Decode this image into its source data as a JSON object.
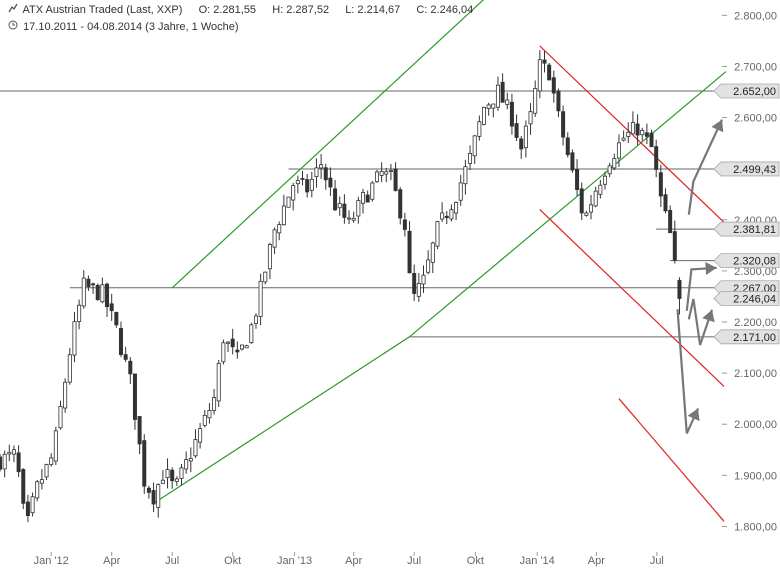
{
  "header": {
    "instrument": "ATX Austrian Traded (Last, XXP)",
    "open": "O: 2.281,55",
    "high": "H: 2.287,52",
    "low": "L: 2.214,67",
    "close": "C: 2.246,04",
    "period": "17.10.2011 - 04.08.2014 (3 Jahre, 1 Woche)",
    "chart_icon": "candlestick-icon",
    "clock_icon": "clock-icon"
  },
  "chart_data": {
    "type": "candlestick",
    "title": "ATX Austrian Traded (Last, XXP)",
    "y_axis": {
      "ylim": [
        1750,
        2830
      ],
      "ticks": [
        "1.800,00",
        "1.900,00",
        "2.000,00",
        "2.100,00",
        "2.200,00",
        "2.300,00",
        "2.400,00",
        "2.500,00",
        "2.600,00",
        "2.700,00",
        "2.800,00"
      ],
      "tick_values": [
        1800,
        1900,
        2000,
        2100,
        2200,
        2300,
        2400,
        2500,
        2600,
        2700,
        2800
      ],
      "position": "right"
    },
    "x_axis": {
      "labels": [
        "Jan '12",
        "Apr",
        "Jul",
        "Okt",
        "Jan '13",
        "Apr",
        "Jul",
        "Okt",
        "Jan '14",
        "Apr",
        "Jul"
      ],
      "label_dates": [
        "2012-01-02",
        "2012-04-02",
        "2012-07-02",
        "2012-10-01",
        "2013-01-02",
        "2013-04-01",
        "2013-07-01",
        "2013-10-01",
        "2014-01-02",
        "2014-04-01",
        "2014-07-01"
      ],
      "range": [
        "2011-10-17",
        "2014-10-10"
      ]
    },
    "grid": false,
    "colors": {
      "candle": "#333333",
      "support_level": "#666666",
      "uptrend_channel": "#2a9a2a",
      "downtrend_channel": "#e02020",
      "scenario_arrows": "#777777",
      "label_box": "#e2e2e2"
    },
    "series": [
      {
        "type": "ohlc",
        "anchors": [
          [
            "2011-10-17",
            1930
          ],
          [
            "2011-11-10",
            1940
          ],
          [
            "2011-11-25",
            1790
          ],
          [
            "2011-12-10",
            1870
          ],
          [
            "2012-01-05",
            1940
          ],
          [
            "2012-01-31",
            2150
          ],
          [
            "2012-02-20",
            2270
          ],
          [
            "2012-03-19",
            2255
          ],
          [
            "2012-04-09",
            2185
          ],
          [
            "2012-05-01",
            2080
          ],
          [
            "2012-05-21",
            1890
          ],
          [
            "2012-06-04",
            1860
          ],
          [
            "2012-06-20",
            1910
          ],
          [
            "2012-07-06",
            1870
          ],
          [
            "2012-08-01",
            1950
          ],
          [
            "2012-09-03",
            2050
          ],
          [
            "2012-09-17",
            2170
          ],
          [
            "2012-10-08",
            2125
          ],
          [
            "2012-11-01",
            2200
          ],
          [
            "2012-12-03",
            2380
          ],
          [
            "2012-12-31",
            2470
          ],
          [
            "2013-01-21",
            2460
          ],
          [
            "2013-02-11",
            2510
          ],
          [
            "2013-03-04",
            2430
          ],
          [
            "2013-03-25",
            2390
          ],
          [
            "2013-04-15",
            2440
          ],
          [
            "2013-05-13",
            2490
          ],
          [
            "2013-05-27",
            2480
          ],
          [
            "2013-06-17",
            2390
          ],
          [
            "2013-06-27",
            2240
          ],
          [
            "2013-07-15",
            2280
          ],
          [
            "2013-08-05",
            2380
          ],
          [
            "2013-09-02",
            2450
          ],
          [
            "2013-09-23",
            2520
          ],
          [
            "2013-10-14",
            2620
          ],
          [
            "2013-11-04",
            2650
          ],
          [
            "2013-11-25",
            2600
          ],
          [
            "2013-12-09",
            2540
          ],
          [
            "2013-12-23",
            2600
          ],
          [
            "2014-01-06",
            2700
          ],
          [
            "2014-01-20",
            2690
          ],
          [
            "2014-02-03",
            2600
          ],
          [
            "2014-02-24",
            2490
          ],
          [
            "2014-03-14",
            2400
          ],
          [
            "2014-03-31",
            2460
          ],
          [
            "2014-04-21",
            2520
          ],
          [
            "2014-05-12",
            2560
          ],
          [
            "2014-06-02",
            2580
          ],
          [
            "2014-06-23",
            2540
          ],
          [
            "2014-07-07",
            2440
          ],
          [
            "2014-07-21",
            2370
          ],
          [
            "2014-08-04",
            2246
          ]
        ]
      }
    ],
    "levels": [
      {
        "label": "2.652,00",
        "value": 2652,
        "from": "2011-10-17",
        "to": "2014-10-10"
      },
      {
        "label": "2.499,43",
        "value": 2499.43,
        "from": "2012-12-24",
        "to": "2014-10-10"
      },
      {
        "label": "2.381,81",
        "value": 2381.81,
        "from": "2014-06-30",
        "to": "2014-10-10"
      },
      {
        "label": "2.320,08",
        "value": 2320.08,
        "from": "2014-07-21",
        "to": "2014-10-10"
      },
      {
        "label": "2.267,00",
        "value": 2267,
        "from": "2012-01-30",
        "to": "2014-10-10"
      },
      {
        "label": "2.246,04",
        "value": 2246.04,
        "current": true
      },
      {
        "label": "2.171,00",
        "value": 2171,
        "from": "2013-06-24",
        "to": "2014-10-10"
      }
    ],
    "trendlines": [
      {
        "color": "green",
        "points": [
          [
            "2012-06-04",
            1845
          ],
          [
            "2013-06-24",
            2171
          ],
          [
            "2014-10-13",
            2690
          ]
        ]
      },
      {
        "color": "green",
        "points": [
          [
            "2012-07-02",
            2267
          ],
          [
            "2013-10-21",
            2840
          ]
        ]
      },
      {
        "color": "red",
        "points": [
          [
            "2014-01-06",
            2740
          ],
          [
            "2014-10-10",
            2395
          ]
        ]
      },
      {
        "color": "red",
        "points": [
          [
            "2014-01-06",
            2420
          ],
          [
            "2014-10-10",
            2074
          ]
        ]
      },
      {
        "color": "red",
        "points": [
          [
            "2014-05-05",
            2050
          ],
          [
            "2014-10-10",
            1810
          ]
        ]
      }
    ],
    "scenario_arrows": [
      [
        [
          "2014-08-18",
          2410
        ],
        [
          "2014-08-25",
          2475
        ],
        [
          "2014-10-07",
          2596
        ]
      ],
      [
        [
          "2014-08-15",
          2222
        ],
        [
          "2014-08-22",
          2303
        ],
        [
          "2014-09-29",
          2306
        ]
      ],
      [
        [
          "2014-08-18",
          2205
        ],
        [
          "2014-08-25",
          2245
        ],
        [
          "2014-09-04",
          2155
        ],
        [
          "2014-09-22",
          2224
        ]
      ],
      [
        [
          "2014-08-01",
          2225
        ],
        [
          "2014-08-15",
          1982
        ],
        [
          "2014-09-01",
          2031
        ]
      ]
    ]
  }
}
